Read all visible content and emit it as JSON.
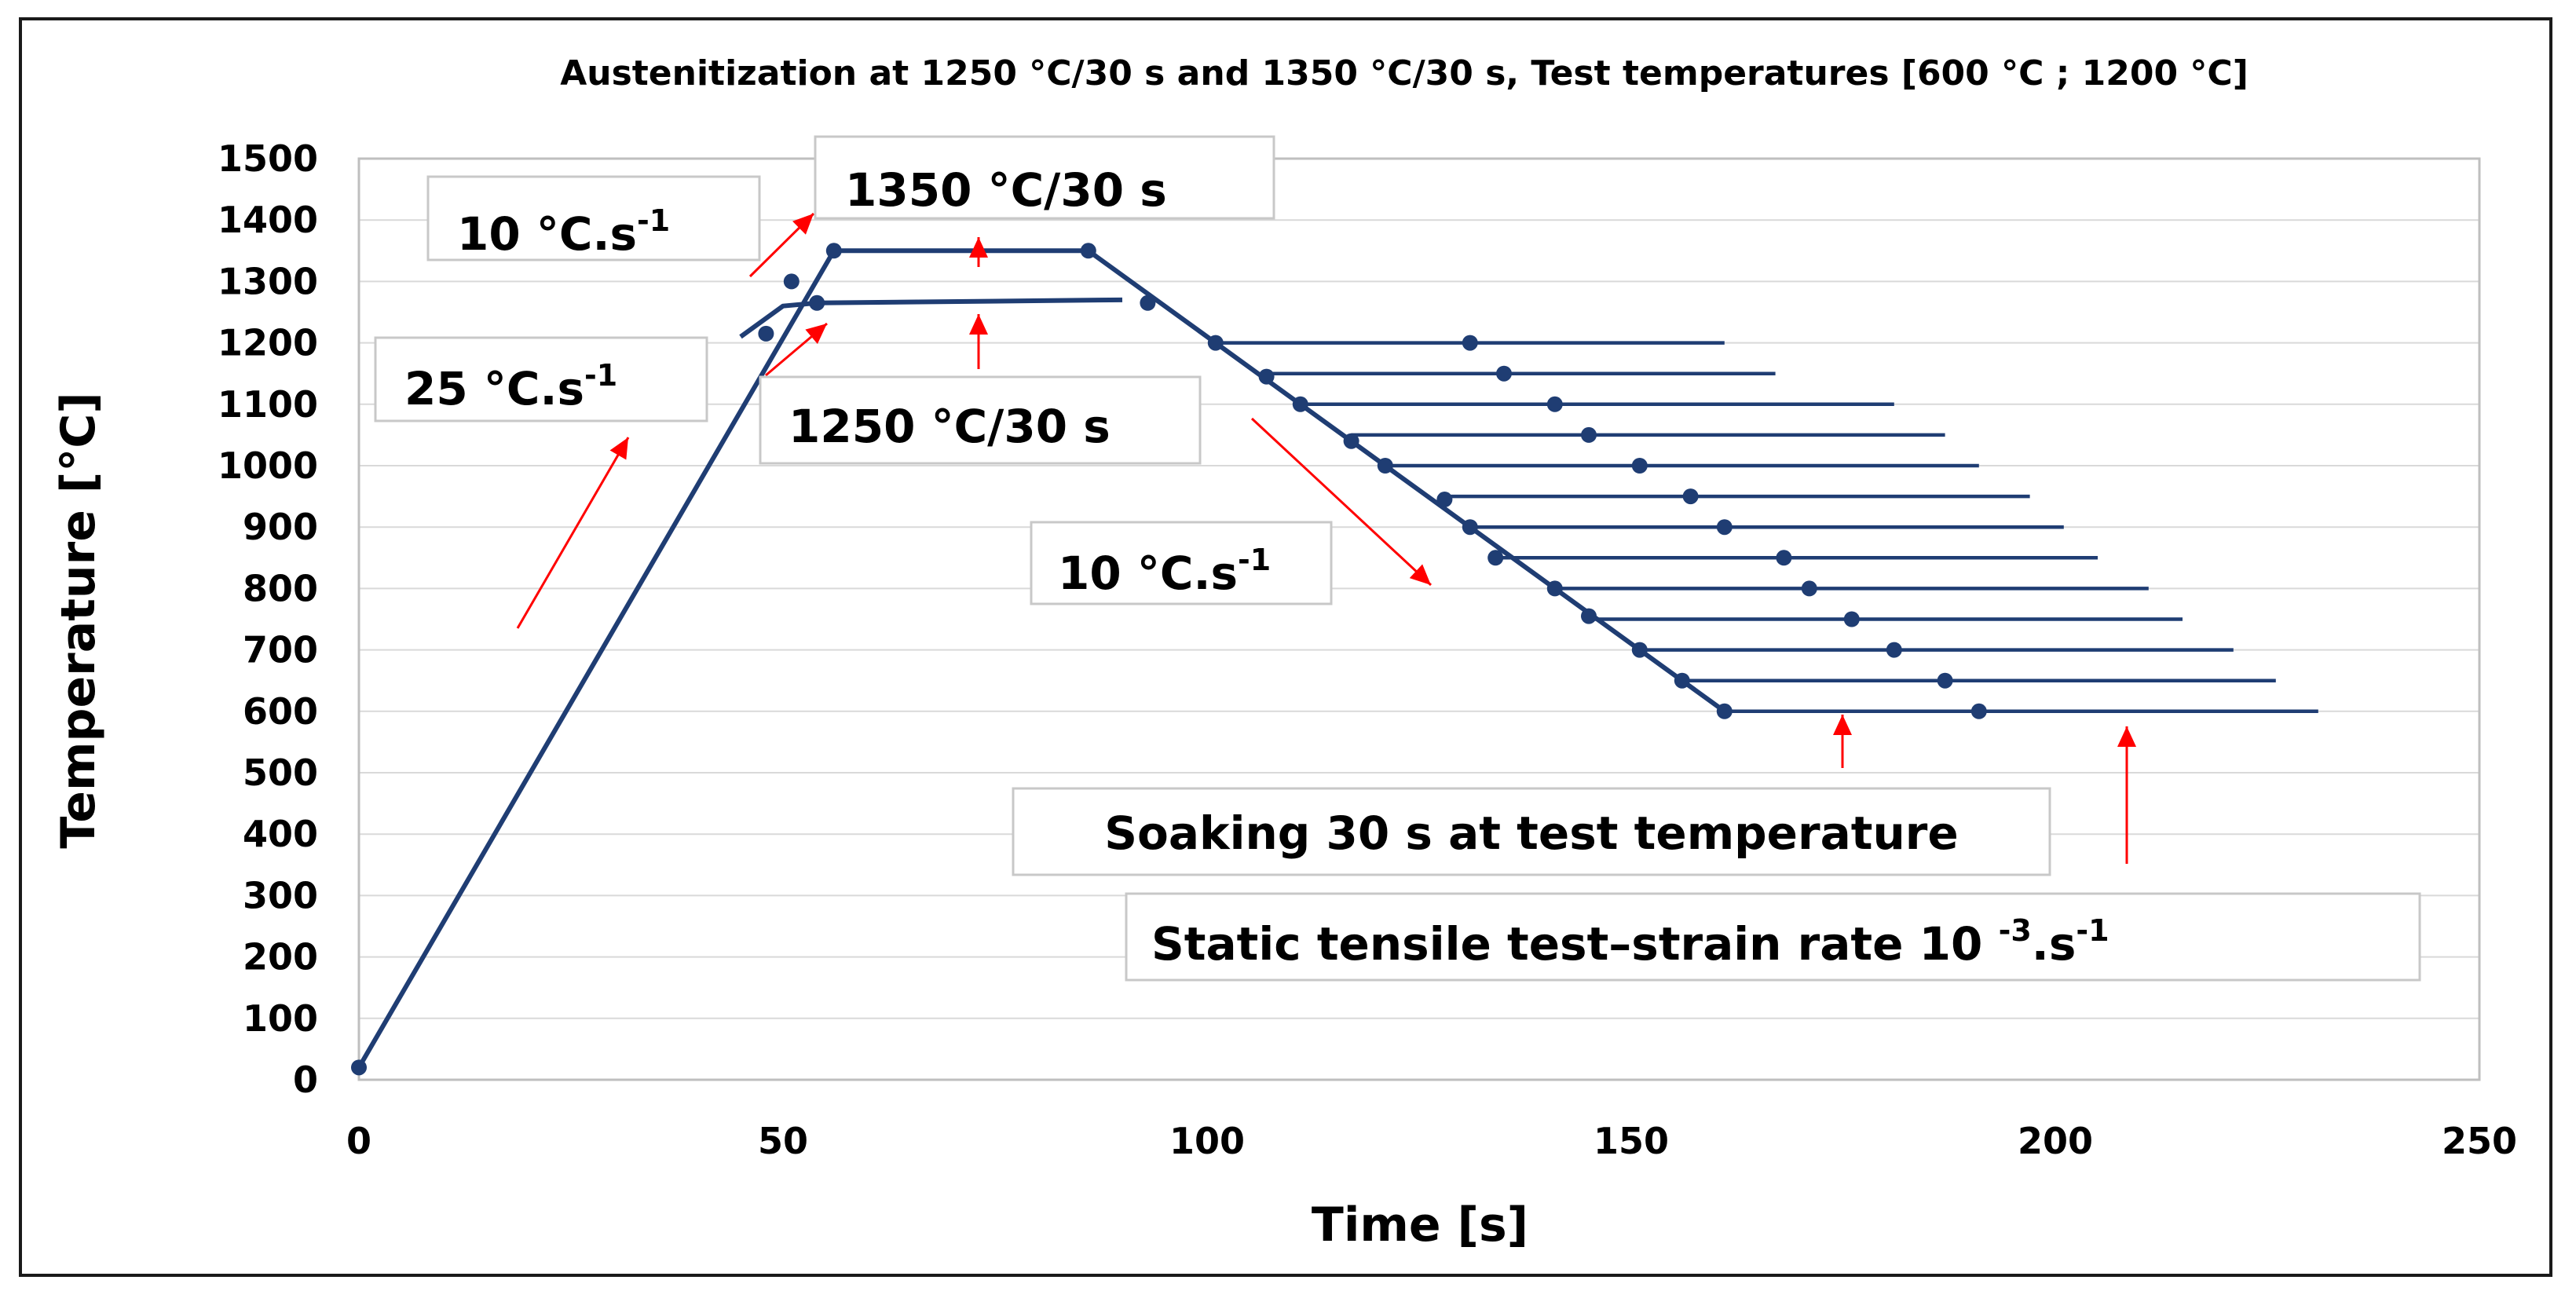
{
  "chart_data": {
    "type": "line",
    "title": "Austenitization at 1250 °C/30 s and 1350 °C/30 s, Test temperatures  [600 °C ; 1200 °C]",
    "xlabel": "Time [s]",
    "ylabel": "Temperature [°C]",
    "xlim": [
      0,
      250
    ],
    "ylim": [
      0,
      1500
    ],
    "x_ticks": [
      0,
      50,
      100,
      150,
      200,
      250
    ],
    "y_ticks": [
      0,
      100,
      200,
      300,
      400,
      500,
      600,
      700,
      800,
      900,
      1000,
      1100,
      1200,
      1300,
      1400,
      1500
    ],
    "grid": "horizontal",
    "line_color": "#1f3d73",
    "arrow_color": "#ff0000",
    "series": [
      {
        "name": "Austenitization 1350 °C/30 s",
        "points": [
          [
            0,
            20
          ],
          [
            56,
            1350
          ],
          [
            86,
            1350
          ],
          [
            161,
            600
          ]
        ],
        "markers": [
          [
            0,
            20
          ],
          [
            51,
            1300
          ],
          [
            56,
            1350
          ],
          [
            86,
            1350
          ],
          [
            93,
            1265
          ],
          [
            101,
            1200
          ],
          [
            107,
            1145
          ],
          [
            111,
            1100
          ],
          [
            117,
            1040
          ],
          [
            121,
            1000
          ],
          [
            128,
            945
          ],
          [
            131,
            900
          ],
          [
            134,
            850
          ],
          [
            141,
            800
          ],
          [
            145,
            755
          ],
          [
            151,
            700
          ],
          [
            156,
            650
          ],
          [
            161,
            600
          ]
        ]
      },
      {
        "name": "Austenitization 1250 °C/30 s",
        "points": [
          [
            45,
            1210
          ],
          [
            50,
            1260
          ],
          [
            54,
            1265
          ],
          [
            90,
            1270
          ]
        ],
        "markers": [
          [
            48,
            1215
          ],
          [
            54,
            1265
          ]
        ]
      }
    ],
    "holds": [
      {
        "temperature": 1200,
        "start": 101,
        "end": 161,
        "marker": 131
      },
      {
        "temperature": 1150,
        "start": 107,
        "end": 167,
        "marker": 135
      },
      {
        "temperature": 1100,
        "start": 111,
        "end": 181,
        "marker": 141
      },
      {
        "temperature": 1050,
        "start": 117,
        "end": 187,
        "marker": 145
      },
      {
        "temperature": 1000,
        "start": 121,
        "end": 191,
        "marker": 151
      },
      {
        "temperature": 950,
        "start": 128,
        "end": 197,
        "marker": 157
      },
      {
        "temperature": 900,
        "start": 131,
        "end": 201,
        "marker": 161
      },
      {
        "temperature": 850,
        "start": 134,
        "end": 205,
        "marker": 168
      },
      {
        "temperature": 800,
        "start": 141,
        "end": 211,
        "marker": 171
      },
      {
        "temperature": 750,
        "start": 145,
        "end": 215,
        "marker": 176
      },
      {
        "temperature": 700,
        "start": 151,
        "end": 221,
        "marker": 181
      },
      {
        "temperature": 650,
        "start": 156,
        "end": 226,
        "marker": 187
      },
      {
        "temperature": 600,
        "start": 161,
        "end": 231,
        "marker": 191
      }
    ],
    "annotations": [
      {
        "id": "rate-heat-10",
        "base": "10 °C.s",
        "exp": "-1"
      },
      {
        "id": "hold-1350",
        "base": "1350 °C/30 s",
        "exp": ""
      },
      {
        "id": "rate-heat-25",
        "base": "25 °C.s",
        "exp": "-1"
      },
      {
        "id": "hold-1250",
        "base": "1250 °C/30 s",
        "exp": ""
      },
      {
        "id": "rate-cool-10",
        "base": "10 °C.s",
        "exp": "-1"
      },
      {
        "id": "soaking",
        "base": "Soaking 30 s at test temperature",
        "exp": ""
      },
      {
        "id": "tensile",
        "base": "Static tensile test–strain rate 10 ",
        "exp": "-3",
        "base2": ".s",
        "exp2": "-1"
      }
    ]
  }
}
